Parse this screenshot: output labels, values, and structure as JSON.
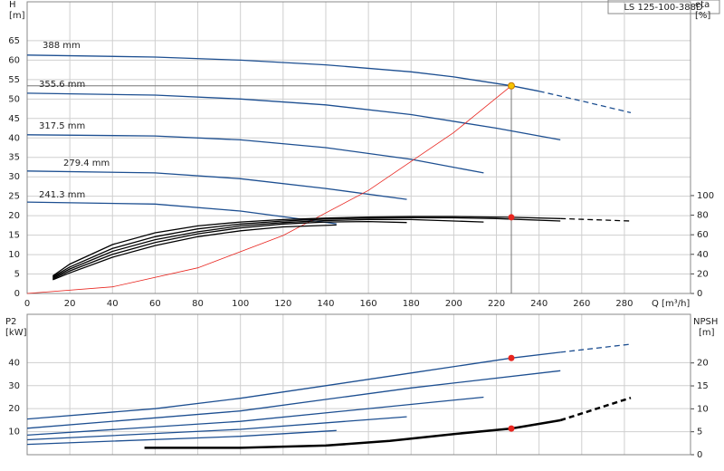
{
  "chart_data": [
    {
      "type": "line",
      "title": "LS 125-100-388D",
      "xlabel": "Q [m³/h]",
      "ylabel": "H",
      "yunit": "[m]",
      "y2label": "eta",
      "y2unit": "[%]",
      "xlim": [
        0,
        311
      ],
      "xticks": [
        0,
        20,
        40,
        60,
        80,
        100,
        120,
        140,
        160,
        180,
        200,
        220,
        240,
        260,
        280
      ],
      "ylim": [
        0,
        75
      ],
      "yticks": [
        0,
        5,
        10,
        15,
        20,
        25,
        30,
        35,
        40,
        45,
        50,
        55,
        60,
        65
      ],
      "y2lim": [
        0,
        298
      ],
      "y2ticks": [
        0,
        20,
        40,
        60,
        80,
        100
      ],
      "grid": true,
      "xtick_labels": true,
      "series": [
        {
          "name": "388 mm",
          "color": "#1d4f91",
          "dash_from": 240,
          "x": [
            0,
            60,
            100,
            140,
            180,
            200,
            227,
            240,
            260,
            283
          ],
          "values": [
            61.3,
            60.8,
            60,
            58.8,
            57,
            55.7,
            53.4,
            52,
            49.5,
            46.5
          ]
        },
        {
          "name": "355.6 mm",
          "color": "#1d4f91",
          "x": [
            0,
            60,
            100,
            140,
            180,
            220,
            250
          ],
          "values": [
            51.5,
            51,
            50,
            48.5,
            46,
            42.5,
            39.5
          ]
        },
        {
          "name": "317.5 mm",
          "color": "#1d4f91",
          "x": [
            0,
            60,
            100,
            140,
            180,
            214
          ],
          "values": [
            40.8,
            40.5,
            39.5,
            37.5,
            34.5,
            31
          ]
        },
        {
          "name": "279.4 mm",
          "color": "#1d4f91",
          "x": [
            0,
            60,
            100,
            140,
            178
          ],
          "values": [
            31.5,
            31,
            29.5,
            27,
            24.2
          ]
        },
        {
          "name": "241.3 mm",
          "color": "#1d4f91",
          "x": [
            0,
            60,
            100,
            130,
            145
          ],
          "values": [
            23.5,
            23,
            21.2,
            19,
            17.9
          ]
        },
        {
          "color": "#e8251f",
          "x": [
            0,
            40,
            80,
            120,
            160,
            200,
            227
          ],
          "values": [
            0,
            1.7,
            6.6,
            14.9,
            26.5,
            41.4,
            53.4
          ]
        },
        {
          "color": "#000000",
          "axis": "y2",
          "dash_from": 250,
          "x": [
            12,
            20,
            40,
            60,
            80,
            100,
            120,
            140,
            160,
            180,
            200,
            227,
            250,
            283
          ],
          "values": [
            18,
            30,
            50,
            62,
            69,
            73,
            75.5,
            77,
            78,
            78.5,
            78.5,
            77.8,
            76.5,
            74
          ]
        },
        {
          "color": "#000000",
          "axis": "y2",
          "x": [
            12,
            20,
            40,
            60,
            80,
            100,
            120,
            140,
            160,
            180,
            200,
            220,
            250
          ],
          "values": [
            17,
            27,
            46,
            58,
            66,
            71,
            74,
            76,
            77,
            77.5,
            77.3,
            76.5,
            74
          ]
        },
        {
          "color": "#000000",
          "axis": "y2",
          "x": [
            12,
            20,
            40,
            60,
            80,
            100,
            120,
            140,
            160,
            180,
            214
          ],
          "values": [
            16,
            25,
            43,
            55,
            63,
            69,
            72.5,
            74.5,
            75.5,
            75.5,
            73
          ]
        },
        {
          "color": "#000000",
          "axis": "y2",
          "x": [
            12,
            20,
            40,
            60,
            80,
            100,
            120,
            140,
            160,
            178
          ],
          "values": [
            15,
            23,
            40,
            52,
            61,
            67,
            71,
            73,
            73.5,
            72.5
          ]
        },
        {
          "color": "#000000",
          "axis": "y2",
          "x": [
            12,
            20,
            40,
            60,
            80,
            100,
            120,
            145
          ],
          "values": [
            14,
            21,
            37,
            49,
            58,
            64,
            68,
            70
          ]
        }
      ],
      "points": [
        {
          "x": 227,
          "y": 53.4,
          "color": "#f5c400",
          "guides": true
        },
        {
          "x": 227,
          "y": 77.8,
          "color": "#e8251f",
          "axis": "y2"
        }
      ]
    },
    {
      "type": "line",
      "ylabel": "P2",
      "yunit": "[kW]",
      "y2label": "NPSH",
      "y2unit": "[m]",
      "xlim": [
        0,
        311
      ],
      "xticks": [
        0,
        20,
        40,
        60,
        80,
        100,
        120,
        140,
        160,
        180,
        200,
        220,
        240,
        260,
        280
      ],
      "ylim": [
        0,
        61
      ],
      "yticks": [
        10,
        20,
        30,
        40
      ],
      "y2lim": [
        0,
        30.6
      ],
      "y2ticks": [
        0,
        5,
        10,
        15,
        20
      ],
      "grid": true,
      "xtick_labels": false,
      "series": [
        {
          "color": "#1d4f91",
          "dash_from": 250,
          "x": [
            0,
            60,
            100,
            140,
            180,
            227,
            250,
            283
          ],
          "values": [
            15.5,
            20,
            24.5,
            30,
            35.5,
            42,
            44.5,
            48
          ]
        },
        {
          "color": "#1d4f91",
          "x": [
            0,
            100,
            180,
            250
          ],
          "values": [
            11.5,
            19,
            29,
            36.5
          ]
        },
        {
          "color": "#1d4f91",
          "x": [
            0,
            100,
            214
          ],
          "values": [
            8.5,
            14.5,
            25
          ]
        },
        {
          "color": "#1d4f91",
          "x": [
            0,
            100,
            178
          ],
          "values": [
            6.5,
            11,
            16.5
          ]
        },
        {
          "color": "#1d4f91",
          "x": [
            0,
            100,
            145
          ],
          "values": [
            4.5,
            8,
            10.5
          ]
        },
        {
          "color": "#000000",
          "axis": "y2",
          "width": 2.5,
          "dash_from": 250,
          "x": [
            55,
            100,
            140,
            170,
            200,
            227,
            250,
            283
          ],
          "values": [
            1.5,
            1.5,
            2,
            3,
            4.5,
            5.7,
            7.5,
            12.4
          ]
        }
      ],
      "points": [
        {
          "x": 227,
          "y": 42,
          "color": "#e8251f"
        },
        {
          "x": 227,
          "y": 5.7,
          "color": "#e8251f",
          "axis": "y2"
        }
      ]
    }
  ]
}
